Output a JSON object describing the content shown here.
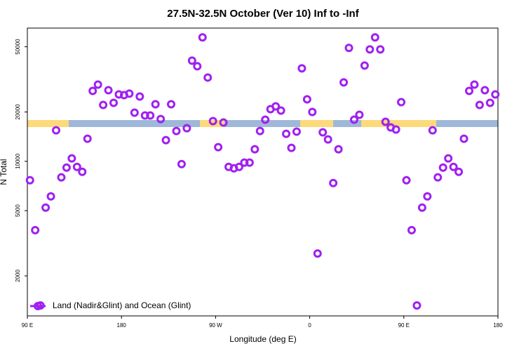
{
  "chart_data": {
    "type": "scatter",
    "title": "27.5N-32.5N October (Ver 10)   Inf to -Inf",
    "xlabel": "Longitude (deg E)",
    "ylabel": "N Total",
    "log_y": true,
    "legend": "bottom-left",
    "xlim": [
      90,
      540
    ],
    "xticks": [
      {
        "value": 90,
        "label": "90 E"
      },
      180,
      {
        "value": 270,
        "label": "90 W"
      },
      {
        "value": 360,
        "label": "0"
      },
      {
        "value": 450,
        "label": "90 E"
      },
      {
        "value": 540,
        "label": "180"
      }
    ],
    "ylim": [
      1140,
      65000
    ],
    "yticks": [
      2000,
      5000,
      10000,
      20000,
      50000
    ],
    "series": [
      {
        "name": "Land (Nadir&Glint) and Ocean (Glint)",
        "color": "#a020f0",
        "x": [
          92.5,
          97.5,
          102.5,
          107.5,
          112.5,
          117.5,
          122.5,
          127.5,
          132.5,
          137.5,
          142.5,
          147.5,
          152.5,
          157.5,
          162.5,
          167.5,
          172.5,
          177.5,
          182.5,
          187.5,
          192.5,
          197.5,
          202.5,
          207.5,
          212.5,
          217.5,
          222.5,
          227.5,
          232.5,
          237.5,
          242.5,
          247.5,
          252.5,
          257.5,
          262.5,
          267.5,
          272.5,
          277.5,
          282.5,
          287.5,
          292.5,
          297.5,
          302.5,
          307.5,
          312.5,
          317.5,
          322.5,
          327.5,
          332.5,
          337.5,
          342.5,
          347.5,
          352.5,
          357.5,
          362.5,
          367.5,
          372.5,
          377.5,
          382.5,
          387.5,
          392.5,
          397.5,
          402.5,
          407.5,
          412.5,
          417.5,
          422.5,
          427.5,
          432.5,
          437.5,
          442.5,
          447.5,
          452.5,
          457.5,
          462.5,
          467.5,
          472.5,
          477.5,
          482.5,
          487.5,
          492.5,
          497.5,
          502.5,
          507.5,
          512.5,
          517.5,
          522.5,
          527.5,
          532.5,
          537.5
        ],
        "values": [
          7670,
          3800,
          1320,
          5220,
          6110,
          15460,
          7980,
          9160,
          10420,
          9250,
          8630,
          13740,
          26900,
          29400,
          22080,
          27170,
          22740,
          25600,
          25350,
          25880,
          19800,
          24850,
          19040,
          19040,
          22290,
          18110,
          13460,
          22290,
          15310,
          9620,
          15930,
          41130,
          38020,
          57020,
          32450,
          17590,
          12200,
          17250,
          9250,
          9070,
          9250,
          9820,
          9820,
          11850,
          15310,
          17950,
          20800,
          21650,
          20400,
          14720,
          12080,
          15170,
          36900,
          23900,
          20000,
          2740,
          15020,
          13600,
          7370,
          11850,
          30300,
          49170,
          17950,
          19230,
          38400,
          48200,
          57020,
          48200,
          17420,
          16100,
          15630,
          22960,
          7670,
          3800,
          1320,
          5220,
          6110,
          15460,
          7980,
          9160,
          10420,
          9250,
          8630,
          13740,
          26900,
          29400,
          22080,
          27170,
          22740,
          25600
        ]
      }
    ]
  }
}
